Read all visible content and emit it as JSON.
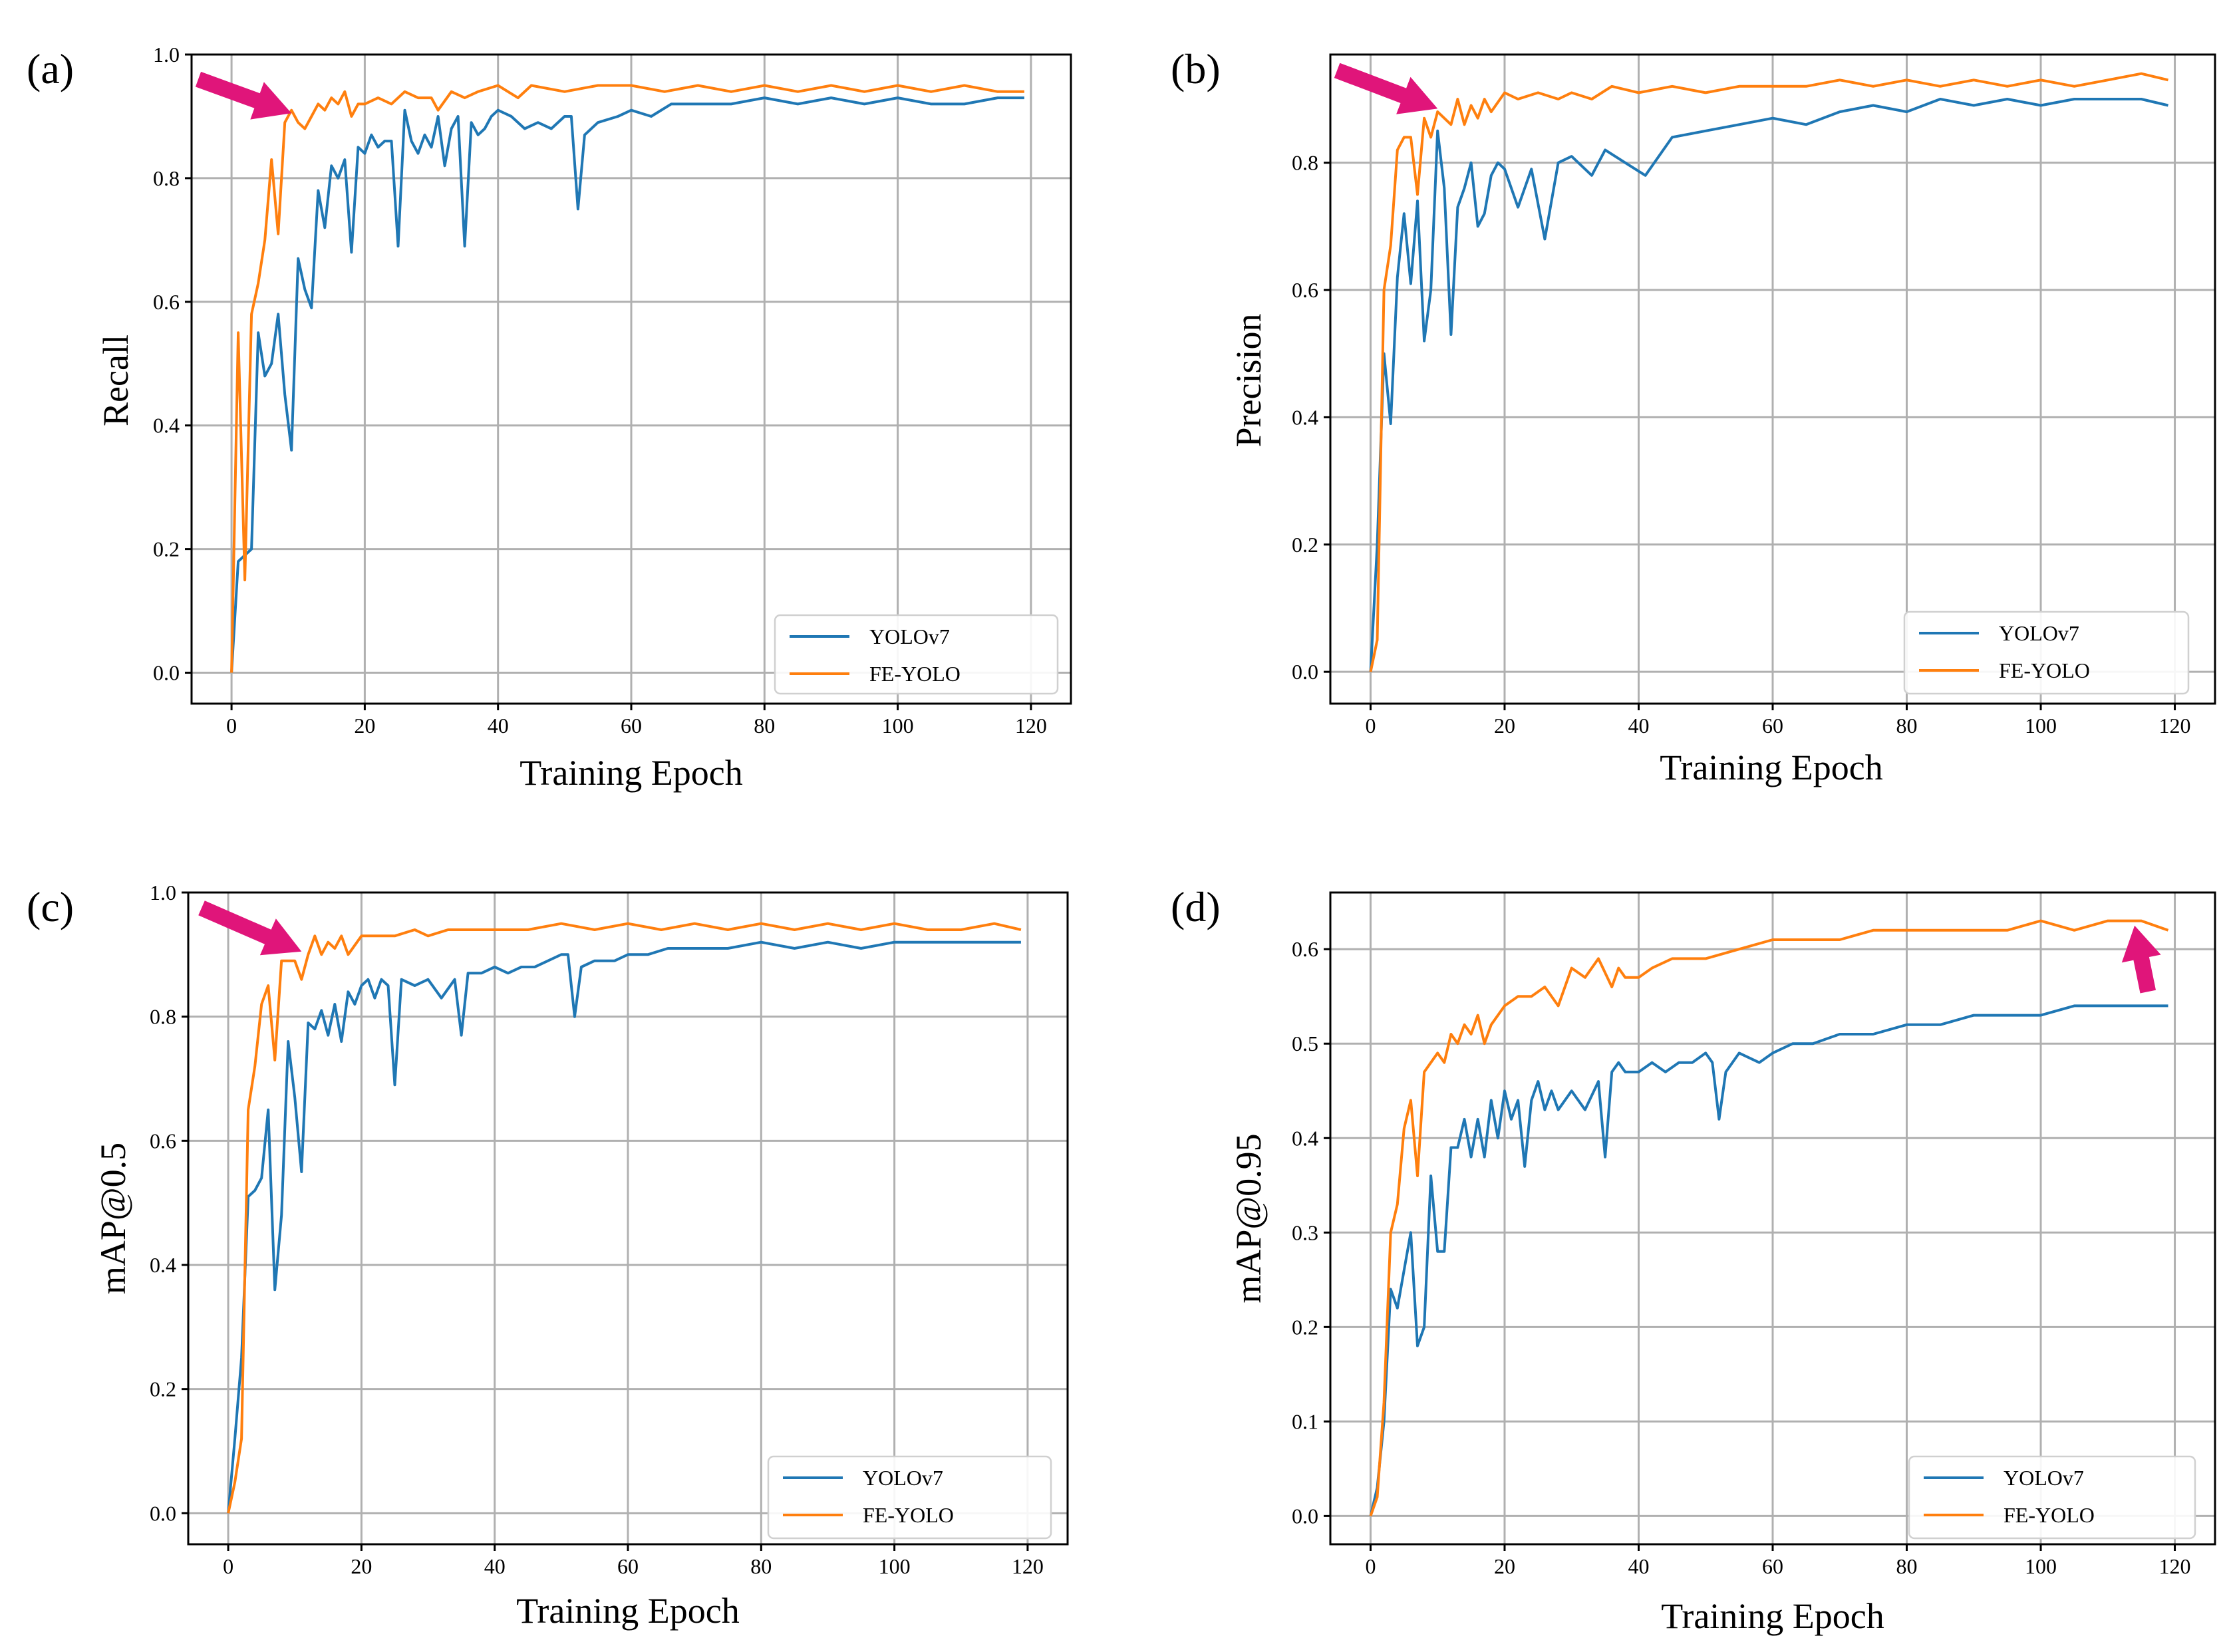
{
  "figure": {
    "legend_entries": [
      "YOLOv7",
      "FE-YOLO"
    ],
    "series_colors": {
      "YOLOv7": "#1f77b4",
      "FE-YOLO": "#ff7f0e"
    },
    "arrow_color": "#e0157a",
    "grid_color": "#b0b0b0"
  },
  "chart_data": [
    {
      "type": "line",
      "panel_label": "(a)",
      "xlabel": "Training Epoch",
      "ylabel": "Recall",
      "xlim": [
        -6,
        126
      ],
      "ylim": [
        -0.05,
        1.0
      ],
      "xticks": [
        0,
        20,
        40,
        60,
        80,
        100,
        120
      ],
      "yticks": [
        0.0,
        0.2,
        0.4,
        0.6,
        0.8,
        1.0
      ],
      "ytick_format": 1,
      "legend_position": "lower-right",
      "arrow": {
        "from": [
          -5,
          0.96
        ],
        "to": [
          9,
          0.905
        ]
      },
      "series": [
        {
          "name": "YOLOv7",
          "x": [
            0,
            1,
            2,
            3,
            4,
            5,
            6,
            7,
            8,
            9,
            10,
            11,
            12,
            13,
            14,
            15,
            16,
            17,
            18,
            19,
            20,
            21,
            22,
            23,
            24,
            25,
            26,
            27,
            28,
            29,
            30,
            31,
            32,
            33,
            34,
            35,
            36,
            37,
            38,
            39,
            40,
            42,
            44,
            46,
            48,
            50,
            51,
            52,
            53,
            55,
            58,
            60,
            63,
            66,
            70,
            75,
            80,
            85,
            90,
            95,
            100,
            105,
            110,
            115,
            119
          ],
          "y": [
            0.0,
            0.18,
            0.19,
            0.2,
            0.55,
            0.48,
            0.5,
            0.58,
            0.45,
            0.36,
            0.67,
            0.62,
            0.59,
            0.78,
            0.72,
            0.82,
            0.8,
            0.83,
            0.68,
            0.85,
            0.84,
            0.87,
            0.85,
            0.86,
            0.86,
            0.69,
            0.91,
            0.86,
            0.84,
            0.87,
            0.85,
            0.9,
            0.82,
            0.88,
            0.9,
            0.69,
            0.89,
            0.87,
            0.88,
            0.9,
            0.91,
            0.9,
            0.88,
            0.89,
            0.88,
            0.9,
            0.9,
            0.75,
            0.87,
            0.89,
            0.9,
            0.91,
            0.9,
            0.92,
            0.92,
            0.92,
            0.93,
            0.92,
            0.93,
            0.92,
            0.93,
            0.92,
            0.92,
            0.93,
            0.93
          ]
        },
        {
          "name": "FE-YOLO",
          "x": [
            0,
            1,
            2,
            3,
            4,
            5,
            6,
            7,
            8,
            9,
            10,
            11,
            12,
            13,
            14,
            15,
            16,
            17,
            18,
            19,
            20,
            22,
            24,
            26,
            28,
            30,
            31,
            33,
            35,
            37,
            40,
            43,
            45,
            50,
            55,
            60,
            65,
            70,
            75,
            80,
            85,
            90,
            95,
            100,
            105,
            110,
            115,
            119
          ],
          "y": [
            0.0,
            0.55,
            0.15,
            0.58,
            0.63,
            0.7,
            0.83,
            0.71,
            0.89,
            0.91,
            0.89,
            0.88,
            0.9,
            0.92,
            0.91,
            0.93,
            0.92,
            0.94,
            0.9,
            0.92,
            0.92,
            0.93,
            0.92,
            0.94,
            0.93,
            0.93,
            0.91,
            0.94,
            0.93,
            0.94,
            0.95,
            0.93,
            0.95,
            0.94,
            0.95,
            0.95,
            0.94,
            0.95,
            0.94,
            0.95,
            0.94,
            0.95,
            0.94,
            0.95,
            0.94,
            0.95,
            0.94,
            0.94
          ]
        }
      ]
    },
    {
      "type": "line",
      "panel_label": "(b)",
      "xlabel": "Training Epoch",
      "ylabel": "Precision",
      "xlim": [
        -6,
        126
      ],
      "ylim": [
        -0.05,
        0.97
      ],
      "xticks": [
        0,
        20,
        40,
        60,
        80,
        100,
        120
      ],
      "yticks": [
        0.0,
        0.2,
        0.4,
        0.6,
        0.8
      ],
      "ytick_format": 1,
      "legend_position": "lower-right",
      "arrow": {
        "from": [
          -5,
          0.945
        ],
        "to": [
          10,
          0.885
        ]
      },
      "series": [
        {
          "name": "YOLOv7",
          "x": [
            0,
            1,
            2,
            3,
            4,
            5,
            6,
            7,
            8,
            9,
            10,
            11,
            12,
            13,
            14,
            15,
            16,
            17,
            18,
            19,
            20,
            22,
            24,
            26,
            28,
            30,
            33,
            35,
            38,
            41,
            45,
            50,
            55,
            60,
            65,
            70,
            75,
            80,
            85,
            90,
            95,
            100,
            105,
            110,
            115,
            119
          ],
          "y": [
            0.0,
            0.2,
            0.5,
            0.39,
            0.62,
            0.72,
            0.61,
            0.74,
            0.52,
            0.6,
            0.85,
            0.76,
            0.53,
            0.73,
            0.76,
            0.8,
            0.7,
            0.72,
            0.78,
            0.8,
            0.79,
            0.73,
            0.79,
            0.68,
            0.8,
            0.81,
            0.78,
            0.82,
            0.8,
            0.78,
            0.84,
            0.85,
            0.86,
            0.87,
            0.86,
            0.88,
            0.89,
            0.88,
            0.9,
            0.89,
            0.9,
            0.89,
            0.9,
            0.9,
            0.9,
            0.89
          ]
        },
        {
          "name": "FE-YOLO",
          "x": [
            0,
            1,
            2,
            3,
            4,
            5,
            6,
            7,
            8,
            9,
            10,
            11,
            12,
            13,
            14,
            15,
            16,
            17,
            18,
            20,
            22,
            25,
            28,
            30,
            33,
            36,
            40,
            45,
            50,
            55,
            60,
            65,
            70,
            75,
            80,
            85,
            90,
            95,
            100,
            105,
            110,
            115,
            119
          ],
          "y": [
            0.0,
            0.05,
            0.6,
            0.67,
            0.82,
            0.84,
            0.84,
            0.75,
            0.87,
            0.84,
            0.88,
            0.87,
            0.86,
            0.9,
            0.86,
            0.89,
            0.87,
            0.9,
            0.88,
            0.91,
            0.9,
            0.91,
            0.9,
            0.91,
            0.9,
            0.92,
            0.91,
            0.92,
            0.91,
            0.92,
            0.92,
            0.92,
            0.93,
            0.92,
            0.93,
            0.92,
            0.93,
            0.92,
            0.93,
            0.92,
            0.93,
            0.94,
            0.93
          ]
        }
      ]
    },
    {
      "type": "line",
      "panel_label": "(c)",
      "xlabel": "Training Epoch",
      "ylabel": "mAP@0.5",
      "xlim": [
        -6,
        126
      ],
      "ylim": [
        -0.05,
        1.0
      ],
      "xticks": [
        0,
        20,
        40,
        60,
        80,
        100,
        120
      ],
      "yticks": [
        0.0,
        0.2,
        0.4,
        0.6,
        0.8,
        1.0
      ],
      "ytick_format": 1,
      "legend_position": "lower-right",
      "arrow": {
        "from": [
          -4,
          0.975
        ],
        "to": [
          11,
          0.905
        ]
      },
      "series": [
        {
          "name": "YOLOv7",
          "x": [
            0,
            1,
            2,
            3,
            4,
            5,
            6,
            7,
            8,
            9,
            10,
            11,
            12,
            13,
            14,
            15,
            16,
            17,
            18,
            19,
            20,
            21,
            22,
            23,
            24,
            25,
            26,
            28,
            30,
            32,
            34,
            35,
            36,
            38,
            40,
            42,
            44,
            46,
            48,
            50,
            51,
            52,
            53,
            55,
            58,
            60,
            63,
            66,
            70,
            75,
            80,
            85,
            90,
            95,
            100,
            105,
            110,
            115,
            119
          ],
          "y": [
            0.0,
            0.12,
            0.25,
            0.51,
            0.52,
            0.54,
            0.65,
            0.36,
            0.48,
            0.76,
            0.67,
            0.55,
            0.79,
            0.78,
            0.81,
            0.77,
            0.82,
            0.76,
            0.84,
            0.82,
            0.85,
            0.86,
            0.83,
            0.86,
            0.85,
            0.69,
            0.86,
            0.85,
            0.86,
            0.83,
            0.86,
            0.77,
            0.87,
            0.87,
            0.88,
            0.87,
            0.88,
            0.88,
            0.89,
            0.9,
            0.9,
            0.8,
            0.88,
            0.89,
            0.89,
            0.9,
            0.9,
            0.91,
            0.91,
            0.91,
            0.92,
            0.91,
            0.92,
            0.91,
            0.92,
            0.92,
            0.92,
            0.92,
            0.92
          ]
        },
        {
          "name": "FE-YOLO",
          "x": [
            0,
            1,
            2,
            3,
            4,
            5,
            6,
            7,
            8,
            9,
            10,
            11,
            12,
            13,
            14,
            15,
            16,
            17,
            18,
            20,
            22,
            25,
            28,
            30,
            33,
            36,
            40,
            45,
            50,
            55,
            60,
            65,
            70,
            75,
            80,
            85,
            90,
            95,
            100,
            105,
            110,
            115,
            119
          ],
          "y": [
            0.0,
            0.05,
            0.12,
            0.65,
            0.72,
            0.82,
            0.85,
            0.73,
            0.89,
            0.89,
            0.89,
            0.86,
            0.9,
            0.93,
            0.9,
            0.92,
            0.91,
            0.93,
            0.9,
            0.93,
            0.93,
            0.93,
            0.94,
            0.93,
            0.94,
            0.94,
            0.94,
            0.94,
            0.95,
            0.94,
            0.95,
            0.94,
            0.95,
            0.94,
            0.95,
            0.94,
            0.95,
            0.94,
            0.95,
            0.94,
            0.94,
            0.95,
            0.94
          ]
        }
      ]
    },
    {
      "type": "line",
      "panel_label": "(d)",
      "xlabel": "Training Epoch",
      "ylabel": "mAP@0.95",
      "xlim": [
        -6,
        126
      ],
      "ylim": [
        -0.03,
        0.66
      ],
      "xticks": [
        0,
        20,
        40,
        60,
        80,
        100,
        120
      ],
      "yticks": [
        0.0,
        0.1,
        0.2,
        0.3,
        0.4,
        0.5,
        0.6
      ],
      "ytick_format": 1,
      "legend_position": "lower-right",
      "arrow": {
        "from": [
          116,
          0.555
        ],
        "to": [
          114,
          0.625
        ]
      },
      "series": [
        {
          "name": "YOLOv7",
          "x": [
            0,
            1,
            2,
            3,
            4,
            5,
            6,
            7,
            8,
            9,
            10,
            11,
            12,
            13,
            14,
            15,
            16,
            17,
            18,
            19,
            20,
            21,
            22,
            23,
            24,
            25,
            26,
            27,
            28,
            30,
            32,
            34,
            35,
            36,
            37,
            38,
            40,
            42,
            44,
            46,
            48,
            50,
            51,
            52,
            53,
            55,
            58,
            60,
            63,
            66,
            70,
            75,
            80,
            85,
            90,
            95,
            100,
            105,
            110,
            115,
            119
          ],
          "y": [
            0.0,
            0.03,
            0.1,
            0.24,
            0.22,
            0.26,
            0.3,
            0.18,
            0.2,
            0.36,
            0.28,
            0.28,
            0.39,
            0.39,
            0.42,
            0.38,
            0.42,
            0.38,
            0.44,
            0.4,
            0.45,
            0.42,
            0.44,
            0.37,
            0.44,
            0.46,
            0.43,
            0.45,
            0.43,
            0.45,
            0.43,
            0.46,
            0.38,
            0.47,
            0.48,
            0.47,
            0.47,
            0.48,
            0.47,
            0.48,
            0.48,
            0.49,
            0.48,
            0.42,
            0.47,
            0.49,
            0.48,
            0.49,
            0.5,
            0.5,
            0.51,
            0.51,
            0.52,
            0.52,
            0.53,
            0.53,
            0.53,
            0.54,
            0.54,
            0.54,
            0.54
          ]
        },
        {
          "name": "FE-YOLO",
          "x": [
            0,
            1,
            2,
            3,
            4,
            5,
            6,
            7,
            8,
            9,
            10,
            11,
            12,
            13,
            14,
            15,
            16,
            17,
            18,
            20,
            22,
            24,
            26,
            28,
            30,
            32,
            34,
            36,
            37,
            38,
            40,
            42,
            45,
            50,
            55,
            60,
            65,
            70,
            75,
            80,
            85,
            90,
            95,
            100,
            105,
            110,
            115,
            119
          ],
          "y": [
            0.0,
            0.02,
            0.12,
            0.3,
            0.33,
            0.41,
            0.44,
            0.36,
            0.47,
            0.48,
            0.49,
            0.48,
            0.51,
            0.5,
            0.52,
            0.51,
            0.53,
            0.5,
            0.52,
            0.54,
            0.55,
            0.55,
            0.56,
            0.54,
            0.58,
            0.57,
            0.59,
            0.56,
            0.58,
            0.57,
            0.57,
            0.58,
            0.59,
            0.59,
            0.6,
            0.61,
            0.61,
            0.61,
            0.62,
            0.62,
            0.62,
            0.62,
            0.62,
            0.63,
            0.62,
            0.63,
            0.63,
            0.62
          ]
        }
      ]
    }
  ]
}
